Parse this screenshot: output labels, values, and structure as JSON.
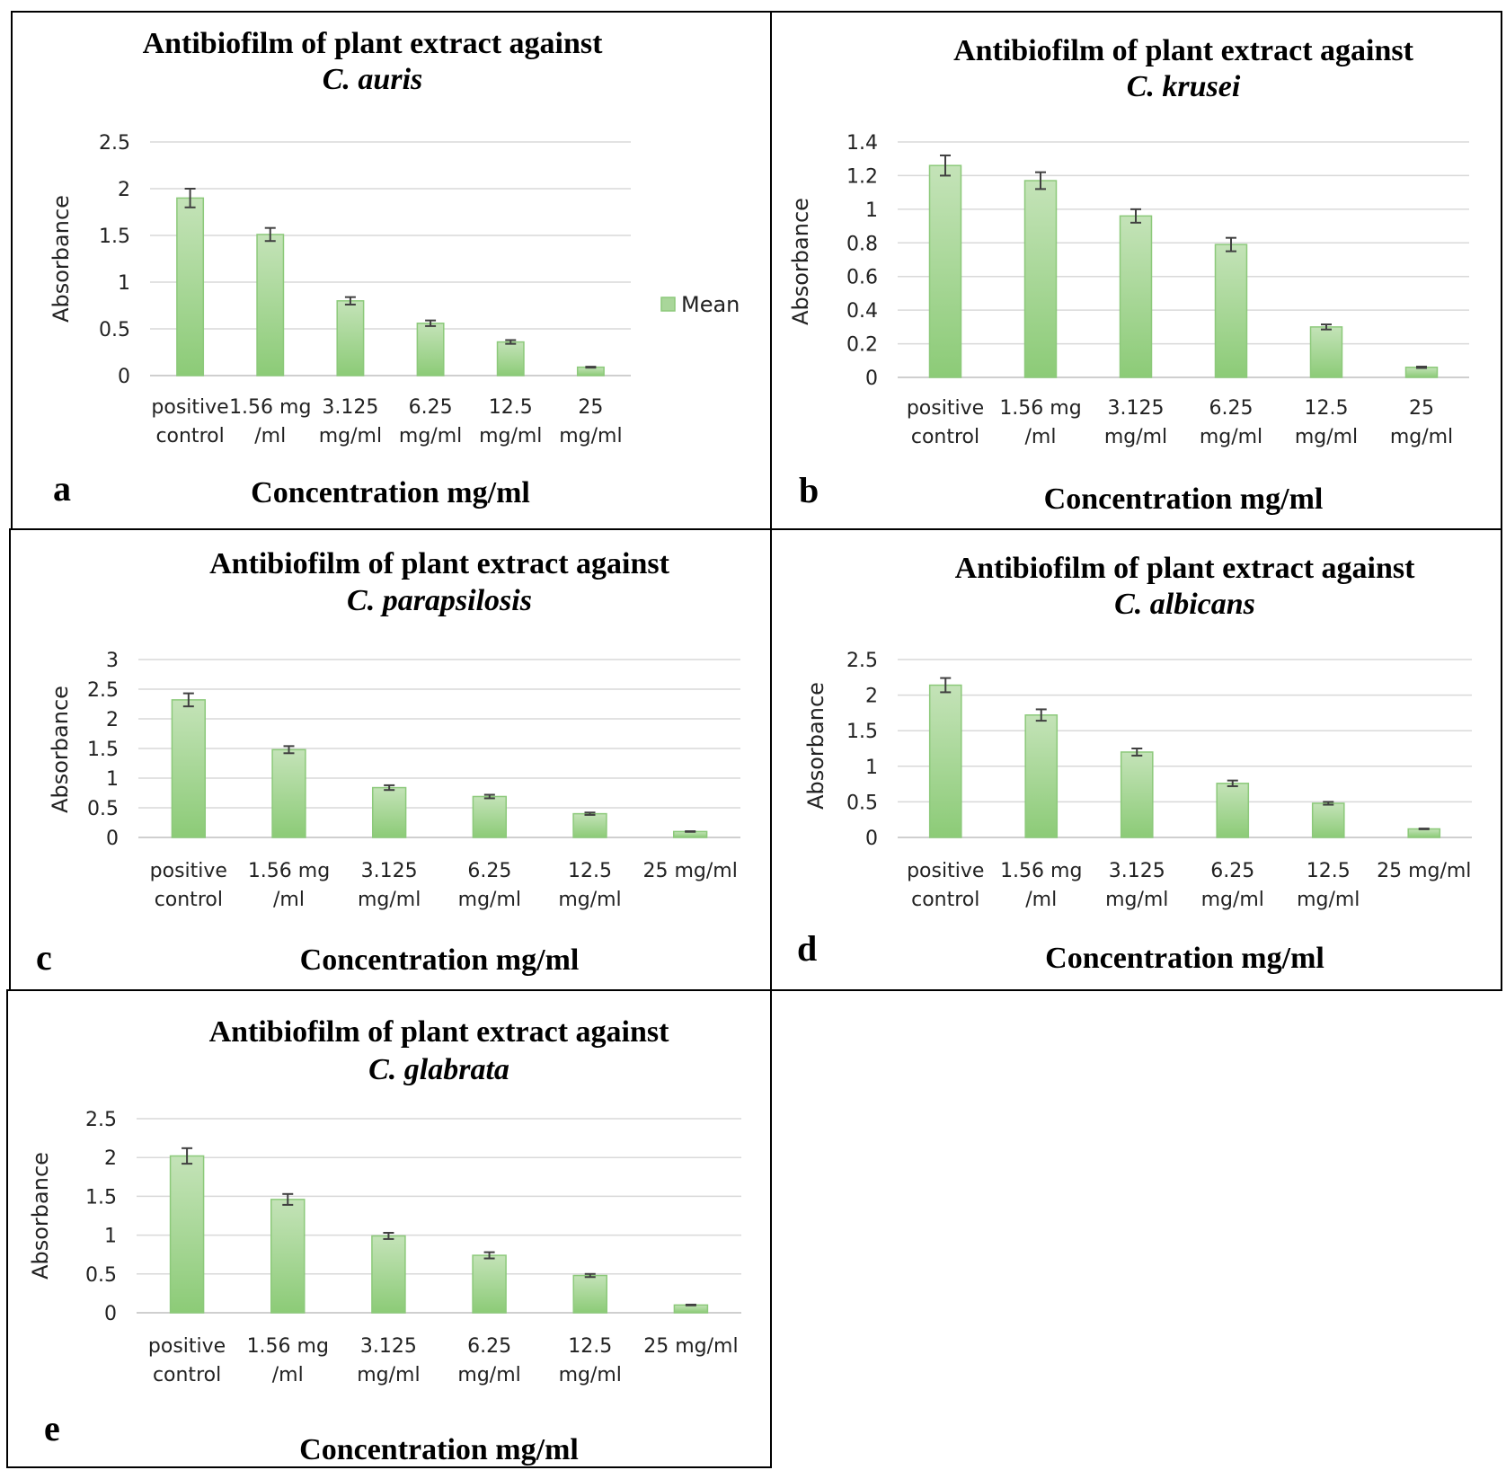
{
  "legend": {
    "label": "Mean",
    "color": "#a9d69a"
  },
  "colors": {
    "bar_top": "#c4e3b8",
    "bar_bottom": "#8ccb77",
    "bar_stroke": "#8cc97a"
  },
  "chart_data": [
    {
      "id": "a",
      "letter": "a",
      "type": "bar",
      "title_line1": "Antibiofilm of plant extract against",
      "title_line2": "C. auris",
      "xlabel": "Concentration mg/ml",
      "ylabel": "Absorbance",
      "categories": [
        [
          "positive",
          "control"
        ],
        [
          "1.56 mg",
          "/ml"
        ],
        [
          "3.125",
          "mg/ml"
        ],
        [
          "6.25",
          "mg/ml"
        ],
        [
          "12.5",
          "mg/ml"
        ],
        [
          "25",
          "mg/ml"
        ]
      ],
      "ylim": [
        0,
        2.5
      ],
      "yticks": [
        "0",
        "0.5",
        "1",
        "1.5",
        "2",
        "2.5"
      ],
      "ytick_values": [
        0,
        0.5,
        1,
        1.5,
        2,
        2.5
      ],
      "series": [
        {
          "name": "Mean",
          "values": [
            1.9,
            1.51,
            0.8,
            0.56,
            0.36,
            0.09
          ],
          "errors": [
            0.1,
            0.07,
            0.04,
            0.03,
            0.02,
            0.005
          ]
        }
      ],
      "legend": true
    },
    {
      "id": "b",
      "letter": "b",
      "type": "bar",
      "title_line1": "Antibiofilm of plant extract against",
      "title_line2": "C. krusei",
      "xlabel": "Concentration mg/ml",
      "ylabel": "Absorbance",
      "categories": [
        [
          "positive",
          "control"
        ],
        [
          "1.56 mg",
          "/ml"
        ],
        [
          "3.125",
          "mg/ml"
        ],
        [
          "6.25",
          "mg/ml"
        ],
        [
          "12.5",
          "mg/ml"
        ],
        [
          "25",
          "mg/ml"
        ]
      ],
      "ylim": [
        0,
        1.4
      ],
      "yticks": [
        "0",
        "0.2",
        "0.4",
        "0.6",
        "0.8",
        "1",
        "1.2",
        "1.4"
      ],
      "ytick_values": [
        0,
        0.2,
        0.4,
        0.6,
        0.8,
        1,
        1.2,
        1.4
      ],
      "series": [
        {
          "name": "Mean",
          "values": [
            1.26,
            1.17,
            0.96,
            0.79,
            0.3,
            0.06
          ],
          "errors": [
            0.06,
            0.05,
            0.04,
            0.04,
            0.015,
            0.004
          ]
        }
      ],
      "legend": false
    },
    {
      "id": "c",
      "letter": "c",
      "type": "bar",
      "title_line1": "Antibiofilm of plant extract against",
      "title_line2": "C. parapsilosis",
      "xlabel": "Concentration mg/ml",
      "ylabel": "Absorbance",
      "categories": [
        [
          "positive",
          "control"
        ],
        [
          "1.56 mg",
          "/ml"
        ],
        [
          "3.125",
          "mg/ml"
        ],
        [
          "6.25",
          "mg/ml"
        ],
        [
          "12.5",
          "mg/ml"
        ],
        [
          "25 mg/ml"
        ]
      ],
      "ylim": [
        0,
        3
      ],
      "yticks": [
        "0",
        "0.5",
        "1",
        "1.5",
        "2",
        "2.5",
        "3"
      ],
      "ytick_values": [
        0,
        0.5,
        1,
        1.5,
        2,
        2.5,
        3
      ],
      "series": [
        {
          "name": "Mean",
          "values": [
            2.32,
            1.48,
            0.84,
            0.69,
            0.4,
            0.1
          ],
          "errors": [
            0.11,
            0.06,
            0.04,
            0.03,
            0.02,
            0.005
          ]
        }
      ],
      "legend": false
    },
    {
      "id": "d",
      "letter": "d",
      "type": "bar",
      "title_line1": "Antibiofilm of plant extract against",
      "title_line2": "C. albicans",
      "xlabel": "Concentration mg/ml",
      "ylabel": "Absorbance",
      "categories": [
        [
          "positive",
          "control"
        ],
        [
          "1.56 mg",
          "/ml"
        ],
        [
          "3.125",
          "mg/ml"
        ],
        [
          "6.25",
          "mg/ml"
        ],
        [
          "12.5",
          "mg/ml"
        ],
        [
          "25 mg/ml"
        ]
      ],
      "ylim": [
        0,
        2.5
      ],
      "yticks": [
        "0",
        "0.5",
        "1",
        "1.5",
        "2",
        "2.5"
      ],
      "ytick_values": [
        0,
        0.5,
        1,
        1.5,
        2,
        2.5
      ],
      "series": [
        {
          "name": "Mean",
          "values": [
            2.14,
            1.72,
            1.2,
            0.76,
            0.48,
            0.12
          ],
          "errors": [
            0.1,
            0.08,
            0.05,
            0.04,
            0.02,
            0.005
          ]
        }
      ],
      "legend": false
    },
    {
      "id": "e",
      "letter": "e",
      "type": "bar",
      "title_line1": "Antibiofilm of plant extract against",
      "title_line2": "C. glabrata",
      "xlabel": "Concentration mg/ml",
      "ylabel": "Absorbance",
      "categories": [
        [
          "positive",
          "control"
        ],
        [
          "1.56 mg",
          "/ml"
        ],
        [
          "3.125",
          "mg/ml"
        ],
        [
          "6.25",
          "mg/ml"
        ],
        [
          "12.5",
          "mg/ml"
        ],
        [
          "25 mg/ml"
        ]
      ],
      "ylim": [
        0,
        2.5
      ],
      "yticks": [
        "0",
        "0.5",
        "1",
        "1.5",
        "2",
        "2.5"
      ],
      "ytick_values": [
        0,
        0.5,
        1,
        1.5,
        2,
        2.5
      ],
      "series": [
        {
          "name": "Mean",
          "values": [
            2.02,
            1.46,
            0.99,
            0.74,
            0.48,
            0.1
          ],
          "errors": [
            0.1,
            0.07,
            0.04,
            0.04,
            0.02,
            0.005
          ]
        }
      ],
      "legend": false
    }
  ]
}
